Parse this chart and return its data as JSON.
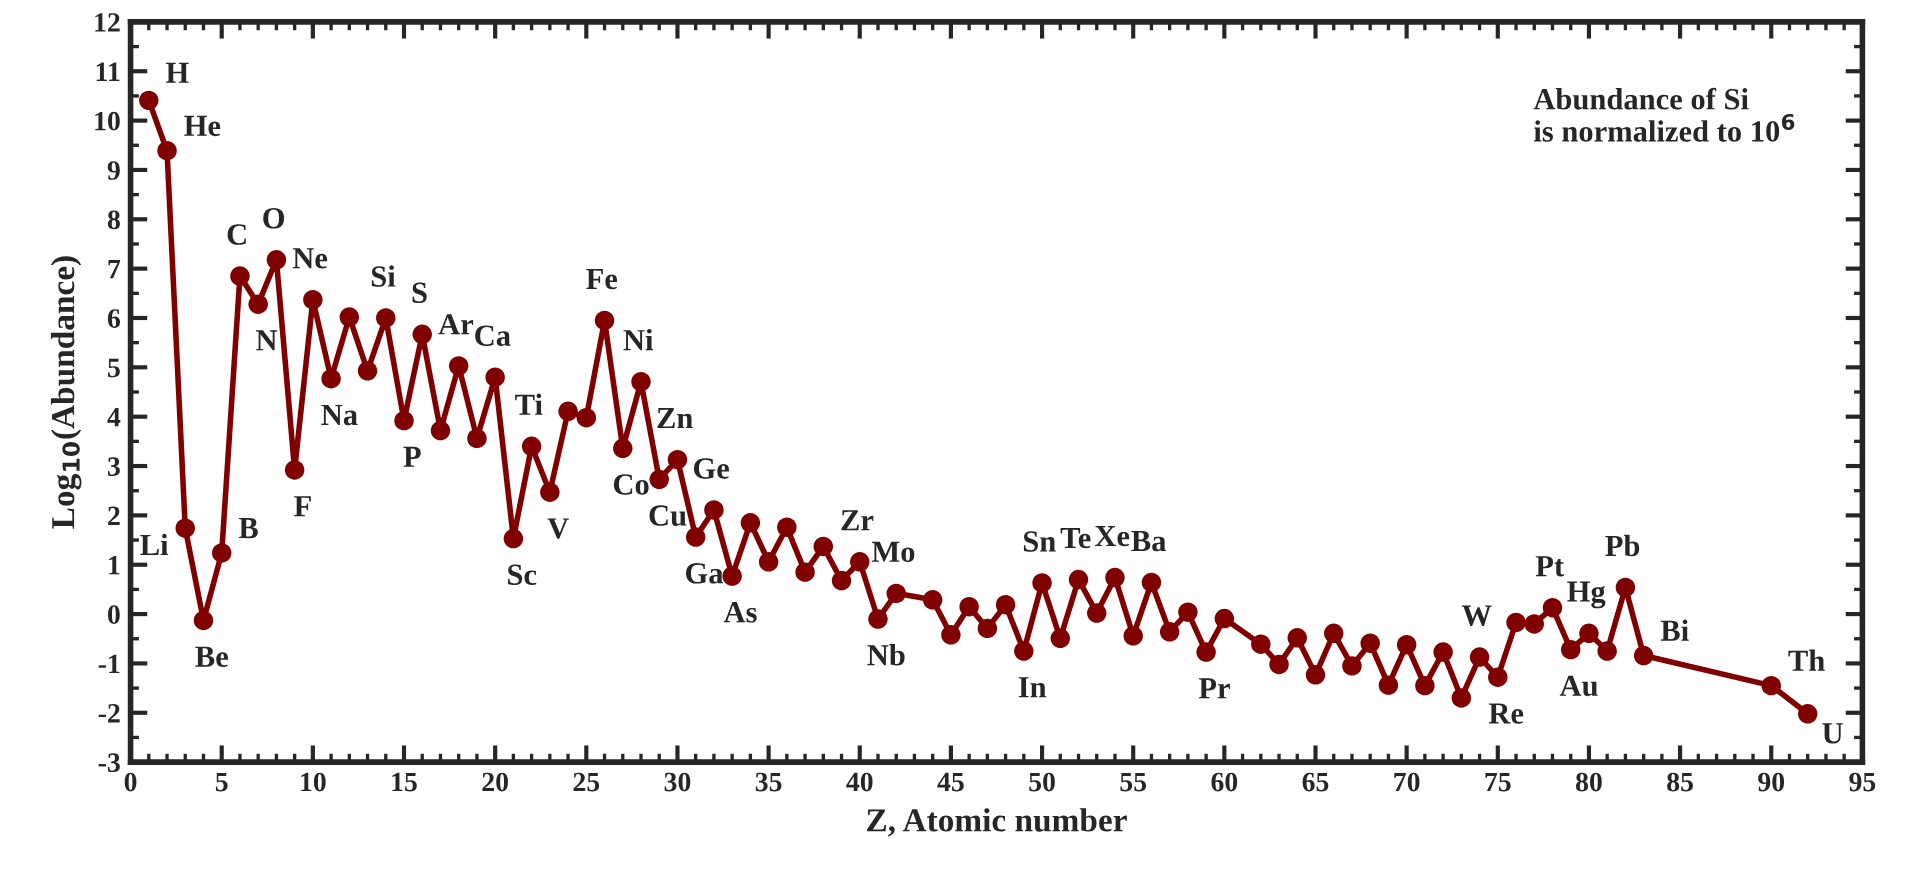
{
  "chart_data": {
    "type": "line",
    "xlabel": "Z, Atomic number",
    "ylabel": "Log$_{10}$(Abundance)",
    "x": [
      1,
      2,
      3,
      4,
      5,
      6,
      7,
      8,
      9,
      10,
      11,
      12,
      13,
      14,
      15,
      16,
      17,
      18,
      19,
      20,
      21,
      22,
      23,
      24,
      25,
      26,
      27,
      28,
      29,
      30,
      31,
      32,
      33,
      34,
      35,
      36,
      37,
      38,
      39,
      40,
      41,
      42,
      44,
      45,
      46,
      47,
      48,
      49,
      50,
      51,
      52,
      53,
      54,
      55,
      56,
      57,
      58,
      59,
      60,
      62,
      63,
      64,
      65,
      66,
      67,
      68,
      69,
      70,
      71,
      72,
      73,
      74,
      75,
      76,
      77,
      78,
      79,
      80,
      81,
      82,
      83,
      90,
      92
    ],
    "series": [
      {
        "color": "#800000",
        "values": [
          10.41,
          9.39,
          1.74,
          -0.13,
          1.24,
          6.85,
          6.28,
          7.18,
          2.92,
          6.37,
          4.77,
          6.02,
          4.93,
          6.0,
          3.92,
          5.67,
          3.72,
          5.03,
          3.56,
          4.8,
          1.53,
          3.4,
          2.47,
          4.11,
          3.98,
          5.95,
          3.36,
          4.71,
          2.73,
          3.13,
          1.56,
          2.11,
          0.77,
          1.85,
          1.06,
          1.76,
          0.85,
          1.37,
          0.68,
          1.06,
          -0.1,
          0.42,
          0.29,
          -0.42,
          0.15,
          -0.29,
          0.19,
          -0.75,
          0.63,
          -0.49,
          0.7,
          0.02,
          0.74,
          -0.44,
          0.64,
          -0.36,
          0.04,
          -0.77,
          -0.09,
          -0.61,
          -1.02,
          -0.48,
          -1.23,
          -0.39,
          -1.05,
          -0.59,
          -1.44,
          -0.62,
          -1.45,
          -0.77,
          -1.7,
          -0.87,
          -1.28,
          -0.17,
          -0.2,
          0.13,
          -0.72,
          -0.39,
          -0.75,
          0.54,
          -0.84,
          -1.45,
          -2.02
        ]
      }
    ],
    "xlim": [
      0,
      95
    ],
    "xticks": [
      0,
      5,
      10,
      15,
      20,
      25,
      30,
      35,
      40,
      45,
      50,
      55,
      60,
      65,
      70,
      75,
      80,
      85,
      90,
      95
    ],
    "ylim": [
      -3,
      12
    ],
    "yticks": [
      -3,
      -2,
      -1,
      0,
      1,
      2,
      3,
      4,
      5,
      6,
      7,
      8,
      9,
      10,
      11,
      12
    ],
    "marker": "circle",
    "line_style": "solid",
    "grid": false,
    "legend": false,
    "annotations": [
      "Abundance of Si\nis normalized to 10$^{6}$",
      {
        "text": "H",
        "x": 1,
        "y": 10.41
      },
      {
        "text": "He",
        "x": 2,
        "y": 9.39
      },
      {
        "text": "Li",
        "x": 3,
        "y": 1.74
      },
      {
        "text": "Be",
        "x": 4,
        "y": -0.13
      },
      {
        "text": "B",
        "x": 5,
        "y": 1.24
      },
      {
        "text": "C",
        "x": 6,
        "y": 6.85
      },
      {
        "text": "N",
        "x": 7,
        "y": 6.28
      },
      {
        "text": "O",
        "x": 8,
        "y": 7.18
      },
      {
        "text": "F",
        "x": 9,
        "y": 2.92
      },
      {
        "text": "Ne",
        "x": 10,
        "y": 6.37
      },
      {
        "text": "Na",
        "x": 11,
        "y": 4.77
      },
      {
        "text": "Si",
        "x": 14,
        "y": 6.0
      },
      {
        "text": "P",
        "x": 15,
        "y": 3.92
      },
      {
        "text": "S",
        "x": 16,
        "y": 5.67
      },
      {
        "text": "Ar",
        "x": 18,
        "y": 5.03
      },
      {
        "text": "Ca",
        "x": 20,
        "y": 4.8
      },
      {
        "text": "Sc",
        "x": 21,
        "y": 1.53
      },
      {
        "text": "Ti",
        "x": 22,
        "y": 3.4
      },
      {
        "text": "V",
        "x": 23,
        "y": 2.47
      },
      {
        "text": "Fe",
        "x": 26,
        "y": 5.95
      },
      {
        "text": "Co",
        "x": 27,
        "y": 3.36
      },
      {
        "text": "Ni",
        "x": 28,
        "y": 4.71
      },
      {
        "text": "Cu",
        "x": 29,
        "y": 2.73
      },
      {
        "text": "Zn",
        "x": 30,
        "y": 3.13
      },
      {
        "text": "Ga",
        "x": 31,
        "y": 1.56
      },
      {
        "text": "Ge",
        "x": 32,
        "y": 2.11
      },
      {
        "text": "As",
        "x": 33,
        "y": 0.77
      },
      {
        "text": "Zr",
        "x": 40,
        "y": 1.06
      },
      {
        "text": "Nb",
        "x": 41,
        "y": -0.1
      },
      {
        "text": "Mo",
        "x": 42,
        "y": 0.42
      },
      {
        "text": "Sn",
        "x": 50,
        "y": 0.63
      },
      {
        "text": "In",
        "x": 49,
        "y": -0.75
      },
      {
        "text": "Te",
        "x": 52,
        "y": 0.7
      },
      {
        "text": "Xe",
        "x": 54,
        "y": 0.74
      },
      {
        "text": "Ba",
        "x": 56,
        "y": 0.64
      },
      {
        "text": "Pr",
        "x": 59,
        "y": -0.77
      },
      {
        "text": "W",
        "x": 74,
        "y": -0.87
      },
      {
        "text": "Re",
        "x": 75,
        "y": -1.28
      },
      {
        "text": "Pt",
        "x": 78,
        "y": 0.13
      },
      {
        "text": "Au",
        "x": 79,
        "y": -0.72
      },
      {
        "text": "Hg",
        "x": 80,
        "y": -0.39
      },
      {
        "text": "Pb",
        "x": 82,
        "y": 0.54
      },
      {
        "text": "Bi",
        "x": 83,
        "y": -0.84
      },
      {
        "text": "Th",
        "x": 90,
        "y": -1.45
      },
      {
        "text": "U",
        "x": 92,
        "y": -2.02
      }
    ]
  }
}
